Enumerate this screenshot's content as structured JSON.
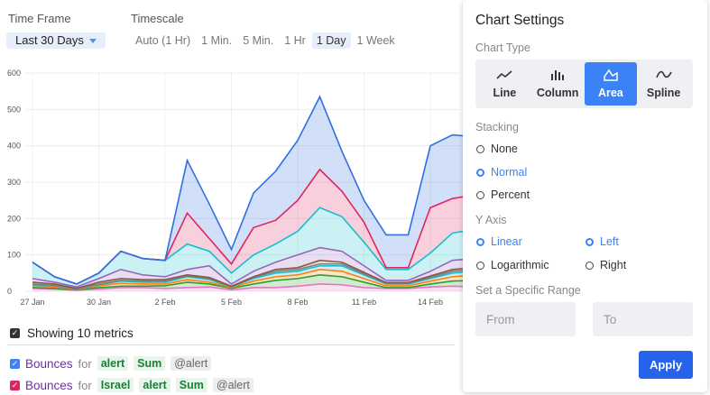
{
  "toolbar": {
    "time_frame_label": "Time Frame",
    "time_frame_value": "Last 30 Days",
    "timescale_label": "Timescale",
    "timescale_options": [
      "Auto (1 Hr)",
      "1 Min.",
      "5 Min.",
      "1 Hr",
      "1 Day",
      "1 Week"
    ],
    "timescale_selected": "1 Day"
  },
  "chart_data": {
    "type": "area",
    "stacking": "normal",
    "ylim": [
      0,
      600
    ],
    "y_ticks": [
      0,
      100,
      200,
      300,
      400,
      500,
      600
    ],
    "x_tick_labels": [
      "27 Jan",
      "30 Jan",
      "2 Feb",
      "5 Feb",
      "8 Feb",
      "11 Feb",
      "14 Feb"
    ],
    "x_tick_index": [
      0,
      3,
      6,
      9,
      12,
      15,
      18
    ],
    "grid": true,
    "series_colors": [
      "#e377c2",
      "#2ca02c",
      "#ff7f0e",
      "#17becf",
      "#7f7f7f",
      "#8c564b",
      "#9467bd",
      "#17becf",
      "#e0245e",
      "#2f6fdf"
    ],
    "series": [
      {
        "values": [
          8,
          6,
          3,
          6,
          10,
          10,
          8,
          10,
          12,
          4,
          10,
          10,
          14,
          20,
          18,
          10,
          8,
          8,
          12,
          14,
          12
        ]
      },
      {
        "values": [
          10,
          8,
          4,
          10,
          14,
          14,
          15,
          25,
          20,
          8,
          20,
          30,
          35,
          45,
          40,
          25,
          10,
          10,
          20,
          28,
          30
        ]
      },
      {
        "values": [
          15,
          12,
          5,
          15,
          22,
          20,
          20,
          32,
          25,
          10,
          28,
          40,
          45,
          60,
          55,
          35,
          15,
          15,
          28,
          40,
          45
        ]
      },
      {
        "values": [
          18,
          15,
          6,
          18,
          28,
          25,
          25,
          40,
          32,
          12,
          35,
          50,
          55,
          70,
          70,
          45,
          20,
          20,
          35,
          50,
          55
        ]
      },
      {
        "values": [
          20,
          16,
          7,
          20,
          30,
          28,
          28,
          42,
          35,
          13,
          38,
          55,
          60,
          75,
          75,
          48,
          22,
          22,
          38,
          55,
          60
        ]
      },
      {
        "values": [
          25,
          20,
          8,
          25,
          35,
          32,
          32,
          45,
          38,
          14,
          40,
          60,
          65,
          85,
          80,
          52,
          24,
          24,
          42,
          60,
          65
        ]
      },
      {
        "values": [
          35,
          25,
          12,
          35,
          60,
          45,
          40,
          60,
          70,
          20,
          55,
          80,
          100,
          120,
          110,
          70,
          30,
          30,
          55,
          85,
          90
        ]
      },
      {
        "values": [
          80,
          40,
          20,
          50,
          110,
          90,
          85,
          130,
          110,
          50,
          100,
          130,
          165,
          230,
          205,
          135,
          60,
          60,
          105,
          160,
          170
        ]
      },
      {
        "values": [
          80,
          40,
          20,
          50,
          110,
          90,
          85,
          215,
          145,
          75,
          175,
          195,
          250,
          335,
          275,
          190,
          65,
          65,
          230,
          255,
          265
        ]
      },
      {
        "values": [
          80,
          40,
          20,
          50,
          110,
          90,
          85,
          360,
          240,
          115,
          270,
          330,
          415,
          535,
          385,
          250,
          155,
          155,
          400,
          430,
          425
        ]
      }
    ]
  },
  "metrics": {
    "showing_label": "Showing 10 metrics",
    "rows": [
      {
        "name": "Bounces",
        "for": "for",
        "tags": [
          "alert"
        ],
        "stat": "Sum",
        "source": "@alert",
        "color": "#3b82f6"
      },
      {
        "name": "Bounces",
        "for": "for",
        "tags": [
          "Israel",
          "alert"
        ],
        "stat": "Sum",
        "source": "@alert",
        "color": "#e0245e"
      }
    ]
  },
  "settings": {
    "title": "Chart Settings",
    "chart_type_label": "Chart Type",
    "chart_types": [
      {
        "label": "Line",
        "icon": "line-chart-icon"
      },
      {
        "label": "Column",
        "icon": "column-chart-icon"
      },
      {
        "label": "Area",
        "icon": "area-chart-icon"
      },
      {
        "label": "Spline",
        "icon": "spline-chart-icon"
      }
    ],
    "selected_chart_type": "Area",
    "stacking_label": "Stacking",
    "stacking_options": [
      "None",
      "Normal",
      "Percent"
    ],
    "selected_stacking": "Normal",
    "y_axis_label": "Y Axis",
    "scale_options": [
      "Linear",
      "Logarithmic"
    ],
    "selected_scale": "Linear",
    "side_options": [
      "Left",
      "Right"
    ],
    "selected_side": "Left",
    "range_label": "Set a Specific Range",
    "range_from_placeholder": "From",
    "range_to_placeholder": "To",
    "apply_label": "Apply",
    "accent_color": "#3b82f6"
  }
}
